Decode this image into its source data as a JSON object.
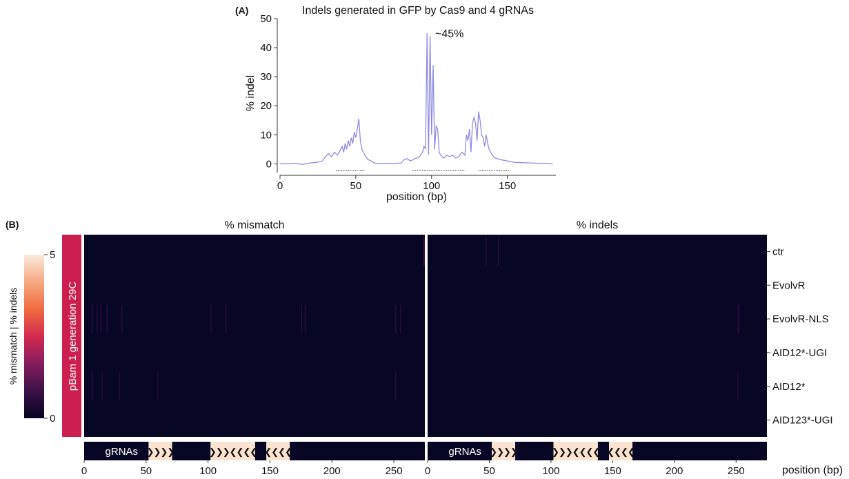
{
  "colors": {
    "line": "#8d8be0",
    "heatmap_bg": "#070725",
    "side_band": "#cc1f4f",
    "grna_block": "#fbe3d0",
    "annotation_bar": "#070725",
    "colorbar_stops": [
      "#060421",
      "#3b1147",
      "#861d5e",
      "#d3294f",
      "#f06b3f",
      "#f6a980",
      "#faeadd"
    ]
  },
  "panel_a": {
    "letter": "(A)",
    "title": "Indels generated in GFP by Cas9 and 4 gRNAs",
    "annotation": "~45%",
    "chart_data": {
      "type": "line",
      "title": "Indels generated in GFP by Cas9 and 4 gRNAs",
      "xlabel": "position (bp)",
      "ylabel": "% indel",
      "xlim": [
        0,
        182
      ],
      "ylim": [
        -3,
        50
      ],
      "xticks": [
        "0",
        "50",
        "100",
        "150"
      ],
      "yticks": [
        "0",
        "10",
        "20",
        "30",
        "40",
        "50"
      ],
      "series": [
        {
          "x": [
            0,
            5,
            10,
            15,
            20,
            24,
            28,
            30,
            32,
            34,
            36,
            38,
            40,
            41,
            42,
            43,
            44,
            45,
            46,
            47,
            48,
            49,
            50,
            51,
            52,
            53,
            54,
            55,
            56,
            58,
            60,
            62,
            65,
            70,
            75,
            80,
            82,
            84,
            86,
            88,
            90,
            92,
            94,
            95,
            96,
            97,
            98,
            99,
            100,
            101,
            102,
            103,
            104,
            105,
            106,
            108,
            110,
            112,
            114,
            116,
            118,
            120,
            122,
            123,
            124,
            125,
            126,
            127,
            128,
            129,
            130,
            131,
            132,
            133,
            134,
            135,
            136,
            137,
            138,
            139,
            140,
            142,
            145,
            150,
            155,
            160,
            165,
            170,
            175,
            180
          ],
          "y": [
            0.1,
            0,
            0.2,
            -0.2,
            0.3,
            0.5,
            1,
            2.5,
            3.5,
            2.5,
            4,
            3,
            5,
            6,
            4,
            7,
            5,
            8,
            6,
            9,
            7,
            11,
            9,
            12,
            15.5,
            8,
            5,
            4,
            3,
            1.5,
            1,
            0.3,
            0.1,
            0.2,
            0.1,
            0.3,
            1.5,
            1.8,
            1,
            1.5,
            2,
            2.5,
            4,
            6,
            5,
            45,
            3,
            44,
            10,
            34,
            5,
            13,
            12,
            4,
            3,
            2,
            3,
            2.5,
            3,
            2,
            2.5,
            4,
            3,
            10,
            8,
            12,
            4,
            14,
            16,
            14,
            8,
            18,
            15,
            10,
            9,
            6,
            10,
            7,
            5,
            4,
            3,
            2,
            1.5,
            1,
            0.5,
            0.4,
            0.3,
            0.2,
            0.2,
            0
          ]
        }
      ],
      "grna_target_ranges": [
        [
          37,
          56
        ],
        [
          87,
          122
        ],
        [
          131,
          152
        ]
      ]
    }
  },
  "panel_b": {
    "letter": "(B)",
    "side_label": "pBam 1 generation 29C",
    "colorbar": {
      "label": "% mismatch   |   % indels",
      "ticks": [
        "0",
        "5"
      ],
      "range": [
        0,
        5
      ]
    },
    "chart_data": {
      "type": "heatmap",
      "panels": [
        "% mismatch",
        "% indels"
      ],
      "rows": [
        "ctr",
        "EvolvR",
        "EvolvR-NLS",
        "AID12*-UGI",
        "AID12*",
        "AID123*-UGI"
      ],
      "xlim": [
        0,
        275
      ],
      "xticks": [
        "0",
        "50",
        "100",
        "150",
        "200",
        "250"
      ],
      "xlabel": "position (bp)",
      "zlim": [
        0,
        5
      ],
      "faint_hotspots": [
        {
          "panel": "% mismatch",
          "row": "EvolvR-NLS",
          "x": [
            6,
            10,
            13,
            18,
            30,
            102,
            114,
            175,
            178,
            251,
            255
          ],
          "value": 1
        },
        {
          "panel": "% mismatch",
          "row": "AID12*",
          "x": [
            6,
            14,
            28,
            59,
            251
          ],
          "value": 1
        },
        {
          "panel": "% mismatch",
          "row": "ctr",
          "x": [
            274
          ],
          "value": 1.5
        },
        {
          "panel": "% indels",
          "row": "EvolvR-NLS",
          "x": [
            251,
            252
          ],
          "value": 1
        },
        {
          "panel": "% indels",
          "row": "AID12*",
          "x": [
            251
          ],
          "value": 1
        },
        {
          "panel": "% indels",
          "row": "ctr",
          "x": [
            47,
            57
          ],
          "value": 0.8
        }
      ]
    },
    "annotation_bar": {
      "label": "gRNAs",
      "blocks": [
        {
          "start": 52,
          "end": 71,
          "arrows": "❯❯❯❯"
        },
        {
          "start": 102,
          "end": 138,
          "arrows": "❯❯❯❮❮❮❮"
        },
        {
          "start": 147,
          "end": 166,
          "arrows": "❮❮❮❮"
        }
      ]
    }
  }
}
